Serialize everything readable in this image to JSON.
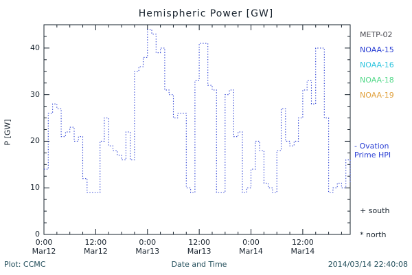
{
  "title": "Hemispheric Power [GW]",
  "footer": {
    "plot_source": "Plot: CCMC",
    "timestamp": "2014/03/14 22:40:08"
  },
  "legend": {
    "satellites": [
      {
        "label": "METP-02",
        "color": "#4a4a52"
      },
      {
        "label": "NOAA-15",
        "color": "#2a3fd4"
      },
      {
        "label": "NOAA-16",
        "color": "#2ec4de"
      },
      {
        "label": "NOAA-18",
        "color": "#52d888"
      },
      {
        "label": "NOAA-19",
        "color": "#e0a03c"
      }
    ],
    "line_entry": {
      "line1": "- Ovation",
      "line2": "Prime HPI",
      "color": "#2a3fd4"
    },
    "markers": [
      {
        "symbol": "+",
        "label": "south"
      },
      {
        "symbol": "*",
        "label": "north"
      }
    ]
  },
  "chart_data": {
    "type": "line",
    "style": "stepped-dotted",
    "title": "Hemispheric Power [GW]",
    "xlabel": "Date and Time",
    "ylabel": "P [GW]",
    "ylim": [
      0,
      45
    ],
    "yticks": [
      0,
      10,
      20,
      30,
      40
    ],
    "y_minor_step": 2.5,
    "xlim_hours": [
      0,
      71
    ],
    "x_minor_step_hours": 3,
    "xticks": [
      {
        "hour": 0,
        "time": "0:00",
        "date": "Mar12"
      },
      {
        "hour": 12,
        "time": "12:00",
        "date": "Mar12"
      },
      {
        "hour": 24,
        "time": "0:00",
        "date": "Mar13"
      },
      {
        "hour": 36,
        "time": "12:00",
        "date": "Mar13"
      },
      {
        "hour": 48,
        "time": "0:00",
        "date": "Mar14"
      },
      {
        "hour": 60,
        "time": "12:00",
        "date": "Mar14"
      }
    ],
    "series": [
      {
        "name": "Ovation Prime HPI",
        "color": "#2a3fd4",
        "x_start_hour": 0,
        "x_step_hours": 1,
        "values": [
          14,
          26,
          28,
          27,
          21,
          22,
          23,
          20,
          21,
          12,
          9,
          9,
          9,
          20,
          25,
          19,
          18,
          17,
          16,
          22,
          16,
          35,
          36,
          38,
          44,
          43,
          39,
          40,
          31,
          30,
          25,
          26,
          26,
          10,
          9,
          33,
          41,
          41,
          32,
          31,
          9,
          9,
          30,
          31,
          21,
          22,
          9,
          10,
          14,
          20,
          18,
          11,
          10,
          9,
          18,
          27,
          20,
          19,
          20,
          25,
          31,
          33,
          28,
          40,
          40,
          25,
          9,
          10,
          11,
          10,
          16,
          11
        ]
      }
    ]
  }
}
